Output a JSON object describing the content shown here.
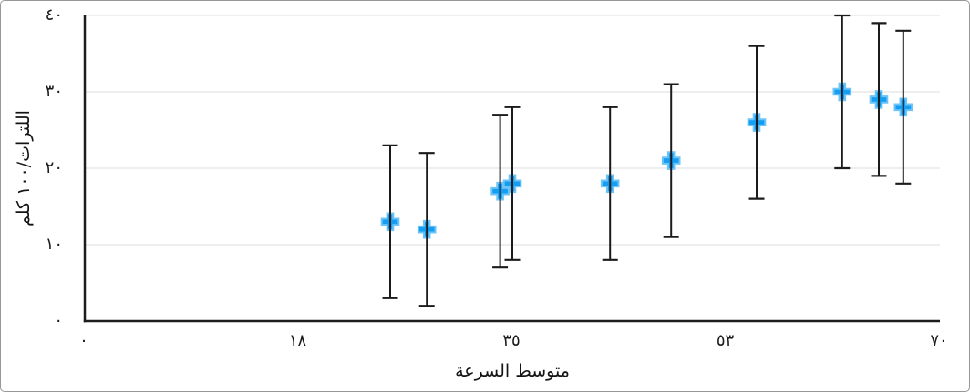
{
  "chart_data": {
    "type": "scatter",
    "title": "",
    "xlabel": "متوسط السرعة",
    "ylabel": "اللترات/١٠٠ كلم",
    "x": [
      25,
      28,
      34,
      35,
      43,
      48,
      55,
      62,
      65,
      67
    ],
    "y": [
      13,
      12,
      17,
      18,
      18,
      21,
      26,
      30,
      29,
      28
    ],
    "error_y": 10,
    "xlim": [
      0,
      70
    ],
    "ylim": [
      0,
      40
    ],
    "x_ticks": [
      {
        "value": 0,
        "label": "٠"
      },
      {
        "value": 17.5,
        "label": "١٨"
      },
      {
        "value": 35,
        "label": "٣٥"
      },
      {
        "value": 52.5,
        "label": "٥٣"
      },
      {
        "value": 70,
        "label": "٧٠"
      }
    ],
    "y_ticks": [
      {
        "value": 0,
        "label": "٠"
      },
      {
        "value": 10,
        "label": "١٠"
      },
      {
        "value": 20,
        "label": "٢٠"
      },
      {
        "value": 30,
        "label": "٣٠"
      },
      {
        "value": 40,
        "label": "٤٠"
      }
    ],
    "grid": "horizontal",
    "legend": "none",
    "marker": "plus",
    "colors": {
      "marker_fill": "#149DF1",
      "marker_fringe": "#6CC4F7",
      "error_bar": "#1B1B1D",
      "axis": "#1D1D1F",
      "gridline": "#DCDCDC",
      "text": "#1A1A1A",
      "background": "#FFFFFF",
      "frame_border": "#979797"
    }
  }
}
